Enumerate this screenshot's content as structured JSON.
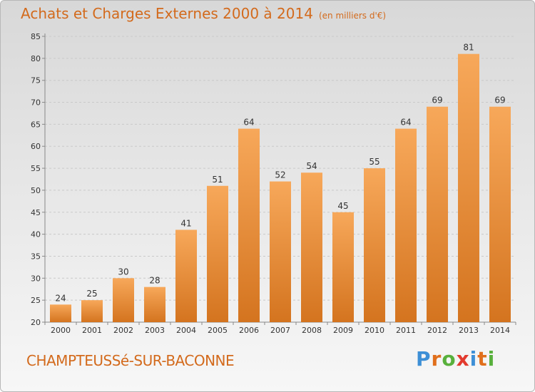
{
  "header": {
    "title": "Achats et Charges Externes 2000 à 2014",
    "subtitle": "(en milliers d'€)"
  },
  "footer": {
    "commune": "CHAMPTEUSSé-SUR-BACONNE",
    "logo_letters": [
      "P",
      "r",
      "o",
      "x",
      "i",
      "t",
      "i"
    ],
    "logo_colors": [
      "#3d8fd6",
      "#e06f1c",
      "#58b03c",
      "#e23a2e",
      "#3d8fd6",
      "#e06f1c",
      "#58b03c"
    ]
  },
  "colors": {
    "bar_light": "#f7a85a",
    "bar_dark": "#d4741f",
    "title": "#d36a1c",
    "grid": "#c9c9c9"
  },
  "chart_data": {
    "type": "bar",
    "title": "Achats et Charges Externes 2000 à 2014",
    "subtitle": "(en milliers d'€)",
    "categories": [
      "2000",
      "2001",
      "2002",
      "2003",
      "2004",
      "2005",
      "2006",
      "2007",
      "2008",
      "2009",
      "2010",
      "2011",
      "2012",
      "2013",
      "2014"
    ],
    "values": [
      24,
      25,
      30,
      28,
      41,
      51,
      64,
      52,
      54,
      45,
      55,
      64,
      69,
      81,
      69
    ],
    "ylim": [
      20,
      85
    ],
    "yticks": [
      20,
      25,
      30,
      35,
      40,
      45,
      50,
      55,
      60,
      65,
      70,
      75,
      80,
      85
    ],
    "grid": true,
    "xlabel": "",
    "ylabel": ""
  }
}
